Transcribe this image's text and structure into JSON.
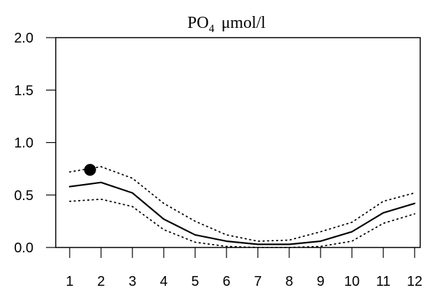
{
  "chart_data": {
    "type": "line",
    "title": {
      "prefix": "PO",
      "subscript": "4",
      "suffix": "μmol/l"
    },
    "x": [
      1,
      2,
      3,
      4,
      5,
      6,
      7,
      8,
      9,
      10,
      11,
      12
    ],
    "xticks": [
      "1",
      "2",
      "3",
      "4",
      "5",
      "6",
      "7",
      "8",
      "9",
      "10",
      "11",
      "12"
    ],
    "ylim": [
      0.0,
      2.0
    ],
    "yticks": [
      "0.0",
      "0.5",
      "1.0",
      "1.5",
      "2.0"
    ],
    "series": [
      {
        "style": "solid",
        "color": "#000000",
        "values": [
          0.58,
          0.62,
          0.52,
          0.27,
          0.12,
          0.06,
          0.03,
          0.03,
          0.06,
          0.15,
          0.33,
          0.42
        ]
      },
      {
        "style": "dotted",
        "color": "#000000",
        "values": [
          0.72,
          0.77,
          0.66,
          0.42,
          0.25,
          0.12,
          0.06,
          0.07,
          0.15,
          0.24,
          0.44,
          0.52
        ]
      },
      {
        "style": "dotted",
        "color": "#000000",
        "values": [
          0.44,
          0.46,
          0.39,
          0.17,
          0.05,
          0.01,
          0.0,
          0.0,
          0.01,
          0.06,
          0.23,
          0.32
        ]
      }
    ],
    "points": [
      {
        "x": 1.65,
        "y": 0.74,
        "color": "#000000"
      }
    ],
    "grid": false,
    "legend": "none"
  }
}
